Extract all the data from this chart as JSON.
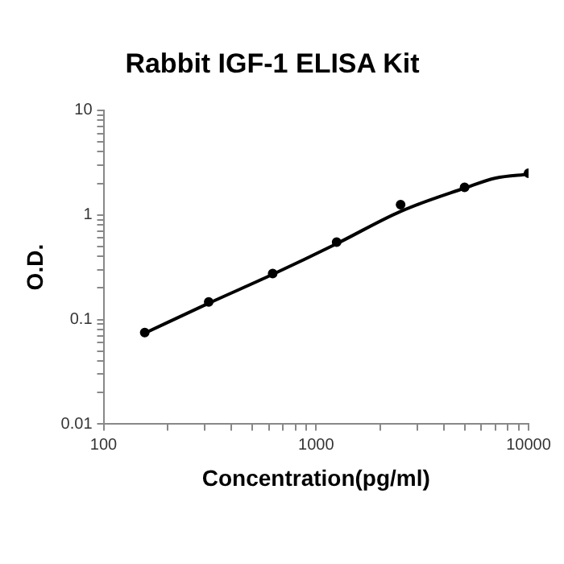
{
  "chart_data": {
    "type": "scatter",
    "title": "Rabbit IGF-1 ELISA Kit",
    "xlabel": "Concentration(pg/ml)",
    "ylabel": "O.D.",
    "log": "xy",
    "grid": false,
    "legend": false,
    "marker": "circle",
    "xlim": [
      100,
      10000
    ],
    "ylim": [
      0.01,
      10
    ],
    "xticks": [
      100,
      {
        "value": 200,
        "label": null
      },
      {
        "value": 300,
        "label": null
      },
      {
        "value": 400,
        "label": null
      },
      {
        "value": 500,
        "label": null
      },
      {
        "value": 600,
        "label": null
      },
      {
        "value": 700,
        "label": null
      },
      {
        "value": 800,
        "label": null
      },
      {
        "value": 900,
        "label": null
      },
      1000,
      {
        "value": 2000,
        "label": null
      },
      {
        "value": 3000,
        "label": null
      },
      {
        "value": 4000,
        "label": null
      },
      {
        "value": 5000,
        "label": null
      },
      {
        "value": 6000,
        "label": null
      },
      {
        "value": 7000,
        "label": null
      },
      {
        "value": 8000,
        "label": null
      },
      {
        "value": 9000,
        "label": null
      },
      10000
    ],
    "yticks": [
      0.01,
      {
        "value": 0.02,
        "label": null
      },
      {
        "value": 0.03,
        "label": null
      },
      {
        "value": 0.04,
        "label": null
      },
      {
        "value": 0.05,
        "label": null
      },
      {
        "value": 0.06,
        "label": null
      },
      {
        "value": 0.07,
        "label": null
      },
      {
        "value": 0.08,
        "label": null
      },
      {
        "value": 0.09,
        "label": null
      },
      0.1,
      {
        "value": 0.2,
        "label": null
      },
      {
        "value": 0.3,
        "label": null
      },
      {
        "value": 0.4,
        "label": null
      },
      {
        "value": 0.5,
        "label": null
      },
      {
        "value": 0.6,
        "label": null
      },
      {
        "value": 0.7,
        "label": null
      },
      {
        "value": 0.8,
        "label": null
      },
      {
        "value": 0.9,
        "label": null
      },
      1,
      {
        "value": 2,
        "label": null
      },
      {
        "value": 3,
        "label": null
      },
      {
        "value": 4,
        "label": null
      },
      {
        "value": 5,
        "label": null
      },
      {
        "value": 6,
        "label": null
      },
      {
        "value": 7,
        "label": null
      },
      {
        "value": 8,
        "label": null
      },
      {
        "value": 9,
        "label": null
      },
      10
    ],
    "series": [
      {
        "color": "#000000",
        "x": [
          156.25,
          312.5,
          625,
          1250,
          2500,
          5000,
          10000
        ],
        "values": [
          0.075,
          0.147,
          0.275,
          0.55,
          1.25,
          1.83,
          2.5
        ]
      },
      {
        "type": "line",
        "color": "#000000",
        "marker": "none",
        "line_style": "solid",
        "x": [
          156.25,
          312.5,
          625,
          1250,
          2500,
          5000,
          7000,
          10000
        ],
        "values": [
          0.074,
          0.143,
          0.27,
          0.53,
          1.08,
          1.8,
          2.25,
          2.45
        ]
      }
    ]
  }
}
